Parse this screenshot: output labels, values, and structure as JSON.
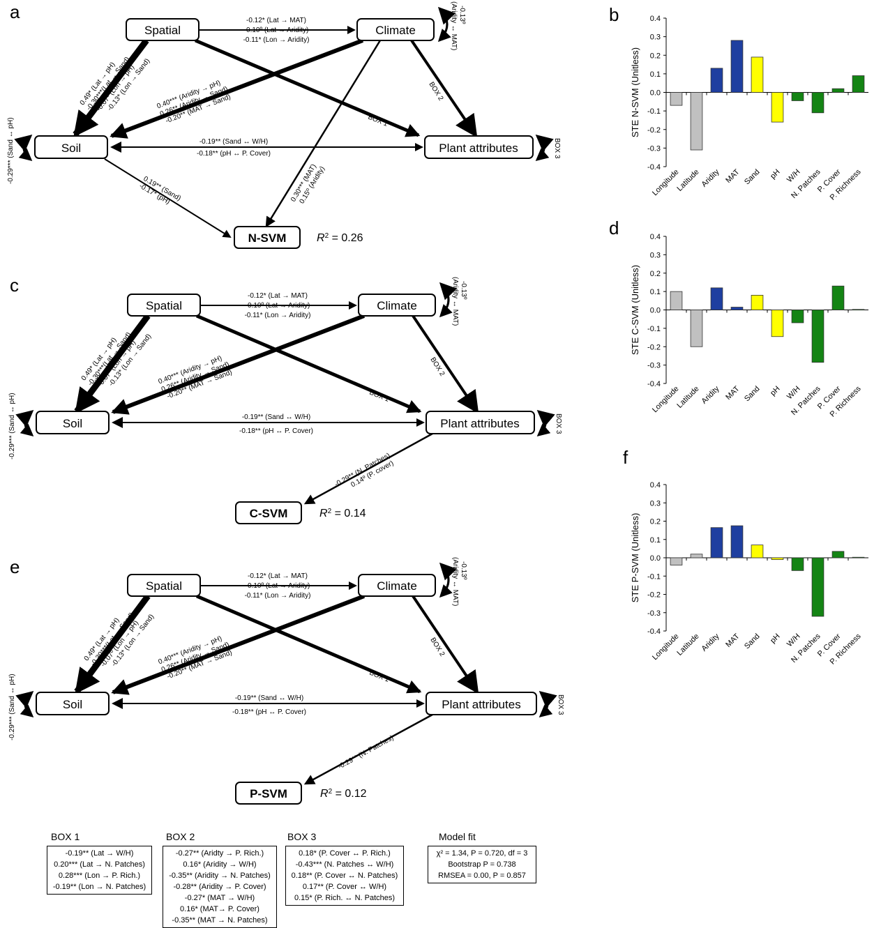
{
  "panels": {
    "a": "a",
    "b": "b",
    "c": "c",
    "d": "d",
    "e": "e",
    "f": "f"
  },
  "sem": {
    "nodes": {
      "spatial": "Spatial",
      "climate": "Climate",
      "soil": "Soil",
      "plant": "Plant attributes"
    },
    "lat_paths": [
      "-0.12* (Lat → MAT)",
      "-0.10º (Lat → Aridity)",
      "-0.11* (Lon → Aridity)"
    ],
    "spatial_soil": [
      "0.49* (Lat → pH)",
      "-0.30***(Lat → Sand)",
      "-0.07º (Lon → pH)",
      "-0.13* (Lon → Sand)"
    ],
    "climate_soil": [
      "0.40*** (Aridity → pH)",
      "0.26** (Aridity → Sand)",
      "-0.20** (MAT → Sand)"
    ],
    "soil_plant": [
      "-0.19** (Sand ↔ W/H)",
      "-0.18** (pH ↔ P. Cover)"
    ],
    "climate_cov": [
      "-0.13º",
      "(Aridity ↔ MAT)"
    ],
    "soil_cov": "-0.29*** (Sand ↔ pH)",
    "box1": "BOX 1",
    "box2": "BOX 2",
    "box3": "BOX 3"
  },
  "model_a": {
    "response": "N-SVM",
    "r2_prefix": "R",
    "r2_value": " = 0.26",
    "soil_path": [
      "0.19** (Sand)",
      "-0.17* (pH)"
    ],
    "climate_path": [
      "0.30*** (MAT)",
      "0.15º (Aridity)"
    ]
  },
  "model_c": {
    "response": "C-SVM",
    "r2_prefix": "R",
    "r2_value": " = 0.14",
    "plant_path": [
      "-0.29** (N. Patches)",
      "0.14º (P. cover)"
    ]
  },
  "model_e": {
    "response": "P-SVM",
    "r2_prefix": "R",
    "r2_value": " = 0.12",
    "plant_path": [
      "-0.29** (N. Patches)"
    ]
  },
  "chart_data": [
    {
      "type": "bar",
      "ylabel": "STE N-SVM (Unitless)",
      "ylim": [
        -0.4,
        0.4
      ],
      "yticks": [
        "0.4",
        "0.3",
        "0.2",
        "0.1",
        "0.0",
        "-0.1",
        "-0.2",
        "-0.3",
        "-0.4"
      ],
      "categories": [
        "Longitude",
        "Latitude",
        "Aridity",
        "MAT",
        "Sand",
        "pH",
        "W/H",
        "N. Patches",
        "P. Cover",
        "P. Richness"
      ],
      "values": [
        -0.07,
        -0.31,
        0.13,
        0.28,
        0.19,
        -0.16,
        -0.045,
        -0.11,
        0.02,
        0.09
      ],
      "colors": [
        "#c0c0c0",
        "#c0c0c0",
        "#1f3fa0",
        "#1f3fa0",
        "#ffff00",
        "#ffff00",
        "#148414",
        "#148414",
        "#148414",
        "#148414"
      ]
    },
    {
      "type": "bar",
      "ylabel": "STE C-SVM (Unitless)",
      "ylim": [
        -0.4,
        0.4
      ],
      "yticks": [
        "0.4",
        "0.3",
        "0.2",
        "0.1",
        "0.0",
        "-0.1",
        "-0.2",
        "-0.3",
        "-0.4"
      ],
      "categories": [
        "Longitude",
        "Latitude",
        "Aridity",
        "MAT",
        "Sand",
        "pH",
        "W/H",
        "N. Patches",
        "P. Cover",
        "P. Richness"
      ],
      "values": [
        0.1,
        -0.2,
        0.12,
        0.015,
        0.08,
        -0.145,
        -0.07,
        -0.285,
        0.13,
        0.003
      ],
      "colors": [
        "#c0c0c0",
        "#c0c0c0",
        "#1f3fa0",
        "#1f3fa0",
        "#ffff00",
        "#ffff00",
        "#148414",
        "#148414",
        "#148414",
        "#148414"
      ]
    },
    {
      "type": "bar",
      "ylabel": "STE P-SVM (Unitless)",
      "ylim": [
        -0.4,
        0.4
      ],
      "yticks": [
        "0.4",
        "0.3",
        "0.2",
        "0.1",
        "0.0",
        "-0.1",
        "-0.2",
        "-0.3",
        "-0.4"
      ],
      "categories": [
        "Longitude",
        "Latitude",
        "Aridity",
        "MAT",
        "Sand",
        "pH",
        "W/H",
        "N. Patches",
        "P. Cover",
        "P. Richness"
      ],
      "values": [
        -0.04,
        0.02,
        0.165,
        0.175,
        0.07,
        -0.01,
        -0.07,
        -0.32,
        0.035,
        0.003
      ],
      "colors": [
        "#c0c0c0",
        "#c0c0c0",
        "#1f3fa0",
        "#1f3fa0",
        "#ffff00",
        "#ffff00",
        "#148414",
        "#148414",
        "#148414",
        "#148414"
      ]
    }
  ],
  "legend": {
    "box1": {
      "title": "BOX 1",
      "lines": [
        "-0.19** (Lat → W/H)",
        "0.20*** (Lat → N. Patches)",
        "0.28*** (Lon → P. Rich.)",
        "-0.19** (Lon → N. Patches)"
      ]
    },
    "box2": {
      "title": "BOX 2",
      "lines": [
        "-0.27** (Aridty → P. Rich.)",
        "0.16* (Aridity → W/H)",
        "-0.35** (Aridity → N. Patches)",
        "-0.28** (Aridity → P. Cover)",
        "-0.27* (MAT → W/H)",
        "0.16* (MAT→ P. Cover)",
        "-0.35** (MAT → N. Patches)"
      ]
    },
    "box3": {
      "title": "BOX 3",
      "lines": [
        "0.18* (P. Cover ↔ P. Rich.)",
        "-0.43*** (N. Patches ↔ W/H)",
        "0.18** (P. Cover ↔ N. Patches)",
        "0.17** (P. Cover ↔ W/H)",
        "0.15* (P. Rich. ↔ N. Patches)"
      ]
    },
    "fit": {
      "title": "Model fit",
      "lines": [
        "χ² = 1.34, P = 0.720, df = 3",
        "Bootstrap P = 0.738",
        "RMSEA = 0.00, P = 0.857"
      ]
    }
  }
}
